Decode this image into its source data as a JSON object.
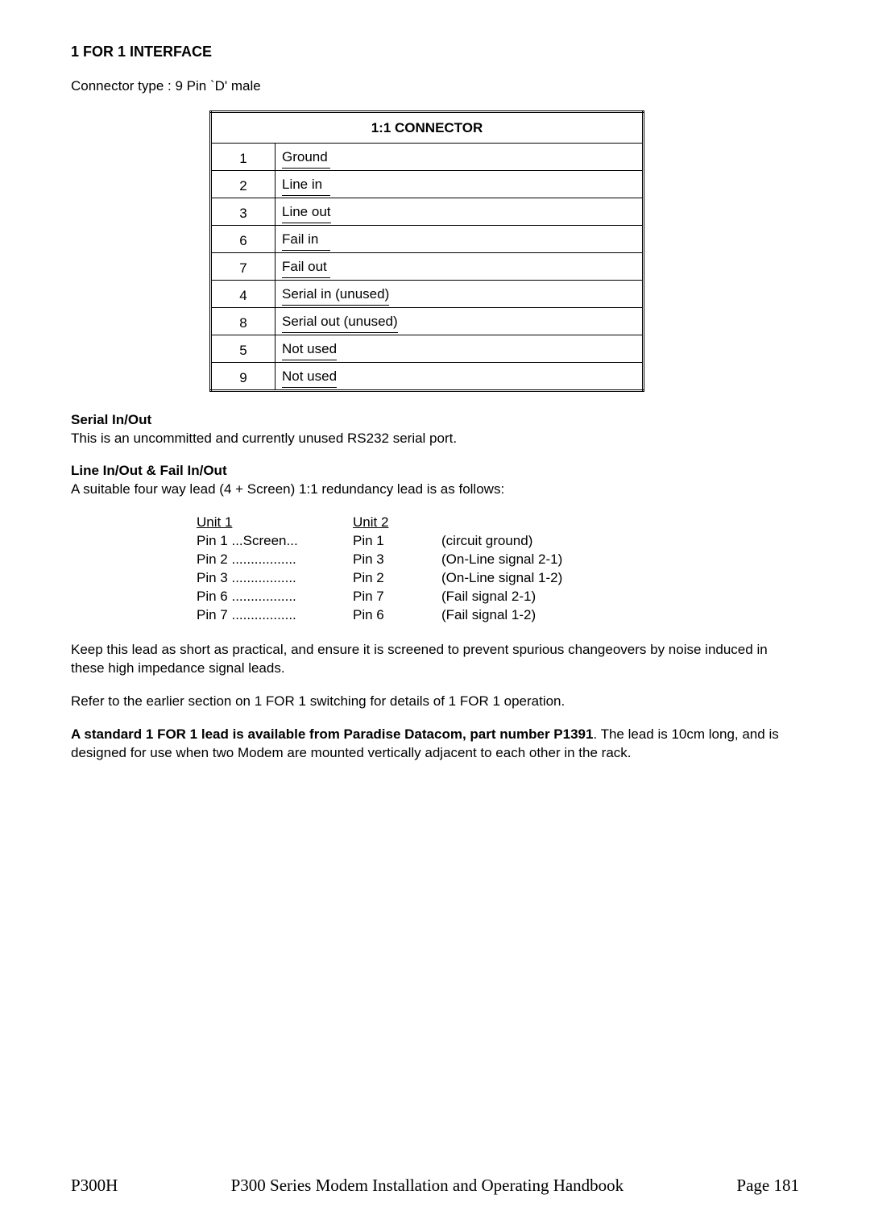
{
  "title": "1 FOR 1 INTERFACE",
  "connector_type_line": "Connector type : 9 Pin `D' male",
  "table": {
    "header": "1:1 CONNECTOR",
    "rows": [
      {
        "pin": "1",
        "desc": "Ground"
      },
      {
        "pin": "2",
        "desc": "Line in"
      },
      {
        "pin": "3",
        "desc": "Line out"
      },
      {
        "pin": "6",
        "desc": "Fail in"
      },
      {
        "pin": "7",
        "desc": "Fail out"
      },
      {
        "pin": "4",
        "desc": "Serial in (unused)"
      },
      {
        "pin": "8",
        "desc": "Serial out (unused)"
      },
      {
        "pin": "5",
        "desc": "Not used"
      },
      {
        "pin": "9",
        "desc": "Not used"
      }
    ]
  },
  "serial": {
    "heading": "Serial In/Out",
    "body": "This is an uncommitted and currently unused RS232 serial port."
  },
  "lineio": {
    "heading": "Line In/Out & Fail In/Out",
    "body": "A suitable four way lead (4 + Screen) 1:1 redundancy lead is as follows:"
  },
  "pinmap": {
    "unit1_label": "Unit 1",
    "unit2_label": "Unit 2",
    "rows": [
      {
        "u1": "Pin 1 ...Screen...",
        "u2": "Pin 1",
        "note": "(circuit ground)"
      },
      {
        "u1": "Pin 2 .................",
        "u2": "Pin 3",
        "note": "(On-Line signal 2-1)"
      },
      {
        "u1": "Pin 3 .................",
        "u2": "Pin 2",
        "note": "(On-Line signal 1-2)"
      },
      {
        "u1": "Pin 6 .................",
        "u2": "Pin 7",
        "note": "(Fail signal 2-1)"
      },
      {
        "u1": "Pin 7 .................",
        "u2": "Pin 6",
        "note": "(Fail signal 1-2)"
      }
    ]
  },
  "para_keep": "Keep this lead as short as practical, and ensure it is screened to prevent spurious changeovers by noise induced in these high impedance signal leads.",
  "para_refer": "Refer to the earlier section on 1 FOR 1 switching for details of 1 FOR 1 operation.",
  "para_std_bold": "A standard 1 FOR 1 lead is available from Paradise Datacom, part number P1391",
  "para_std_rest": ". The lead is 10cm long, and is designed for use when two Modem are mounted vertically adjacent to each other in the rack.",
  "footer": {
    "left": "P300H",
    "center": "P300 Series Modem Installation and Operating Handbook",
    "right": "Page 181"
  }
}
